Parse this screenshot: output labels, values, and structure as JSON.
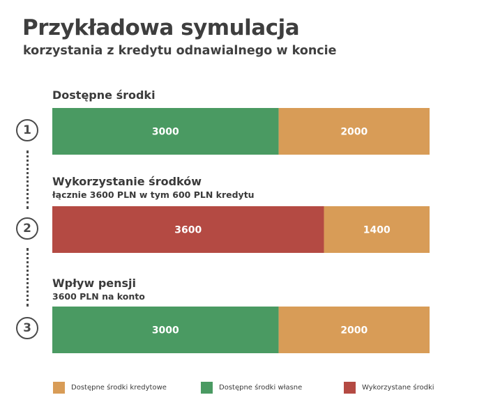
{
  "header": {
    "title": "Przykładowa symulacja",
    "subtitle": "korzystania z kredytu odnawialnego w koncie"
  },
  "steps": [
    {
      "number": "1",
      "label": "Dostępne środki",
      "sublabel": ""
    },
    {
      "number": "2",
      "label": "Wykorzystanie środków",
      "sublabel": "łącznie 3600 PLN w tym 600 PLN kredytu"
    },
    {
      "number": "3",
      "label": "Wpływ pensji",
      "sublabel": "3600 PLN na konto"
    }
  ],
  "legend": [
    {
      "label": "Dostępne środki kredytowe",
      "color": "#D89C57"
    },
    {
      "label": "Dostępne środki własne",
      "color": "#4A9A62"
    },
    {
      "label": "Wykorzystane środki",
      "color": "#B44A43"
    }
  ],
  "colors": {
    "credit_available": "#D89C57",
    "own_available": "#4A9A62",
    "used": "#B44A43"
  },
  "chart_data": {
    "type": "bar",
    "orientation": "horizontal",
    "stacked": true,
    "categories": [
      "1",
      "2",
      "3"
    ],
    "xlim": [
      0,
      5000
    ],
    "grid": false,
    "legend_position": "bottom",
    "bars": [
      {
        "segments": [
          {
            "series": "Dostępne środki własne",
            "value": 3000
          },
          {
            "series": "Dostępne środki kredytowe",
            "value": 2000
          }
        ]
      },
      {
        "segments": [
          {
            "series": "Wykorzystane środki",
            "value": 3600
          },
          {
            "series": "Dostępne środki kredytowe",
            "value": 1400
          }
        ]
      },
      {
        "segments": [
          {
            "series": "Dostępne środki własne",
            "value": 3000
          },
          {
            "series": "Dostępne środki kredytowe",
            "value": 2000
          }
        ]
      }
    ]
  }
}
